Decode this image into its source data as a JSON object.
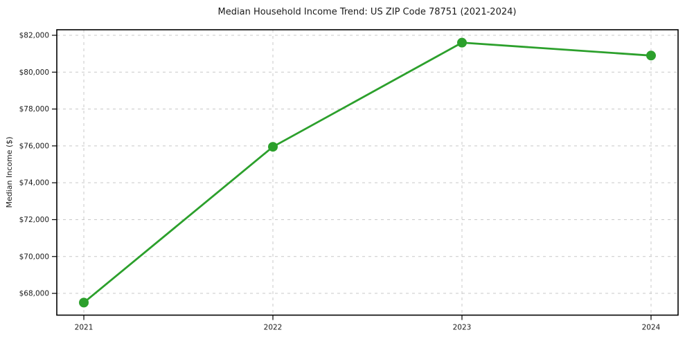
{
  "figure": {
    "background": "#ffffff"
  },
  "chart_data": {
    "type": "line",
    "title": "Median Household Income Trend: US ZIP Code 78751 (2021-2024)",
    "xlabel": "",
    "ylabel": "Median Income ($)",
    "x": [
      2021,
      2022,
      2023,
      2024
    ],
    "xtick_labels": [
      "2021",
      "2022",
      "2023",
      "2024"
    ],
    "values": [
      67500,
      75950,
      81600,
      80900
    ],
    "yticks": [
      68000,
      70000,
      72000,
      74000,
      76000,
      78000,
      80000,
      82000
    ],
    "ytick_labels": [
      "$68,000",
      "$70,000",
      "$72,000",
      "$74,000",
      "$76,000",
      "$78,000",
      "$80,000",
      "$82,000"
    ],
    "xlim": [
      2020.857,
      2024.143
    ],
    "ylim": [
      66820,
      82300
    ],
    "grid": true,
    "grid_style": "dashed",
    "legend": "none",
    "colors": {
      "line": "#2ca02c",
      "marker": "#2ca02c",
      "grid": "#c8c8c8",
      "spine": "#000000",
      "text": "#1a1a1a",
      "background": "#ffffff"
    }
  }
}
